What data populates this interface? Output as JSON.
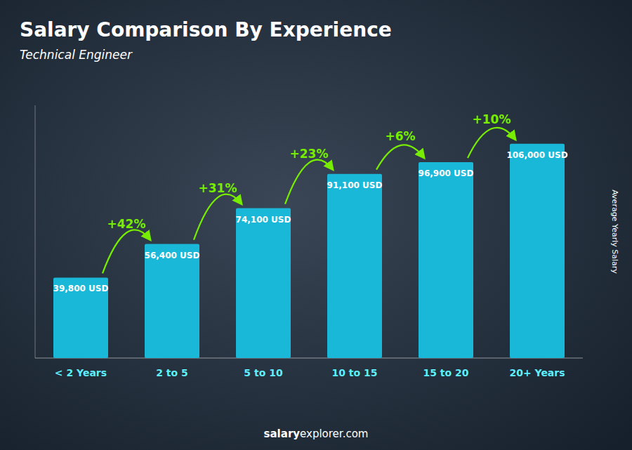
{
  "chart_data": {
    "type": "bar",
    "title": "Salary Comparison By Experience",
    "subtitle": "Technical Engineer",
    "ylabel": "Average Yearly Salary",
    "footer": [
      "salary",
      "explorer.com"
    ],
    "categories": [
      "< 2 Years",
      "2 to 5",
      "5 to 10",
      "10 to 15",
      "15 to 20",
      "20+ Years"
    ],
    "values": [
      39800,
      56400,
      74100,
      91100,
      96900,
      106000
    ],
    "value_labels": [
      "39,800 USD",
      "56,400 USD",
      "74,100 USD",
      "91,100 USD",
      "96,900 USD",
      "106,000 USD"
    ],
    "data_labels": true,
    "annotations": [
      "+42%",
      "+31%",
      "+23%",
      "+6%",
      "+10%"
    ],
    "color": "#1ab8d8",
    "ylim": [
      0,
      125000
    ],
    "tick_labels": false,
    "grid": false
  }
}
